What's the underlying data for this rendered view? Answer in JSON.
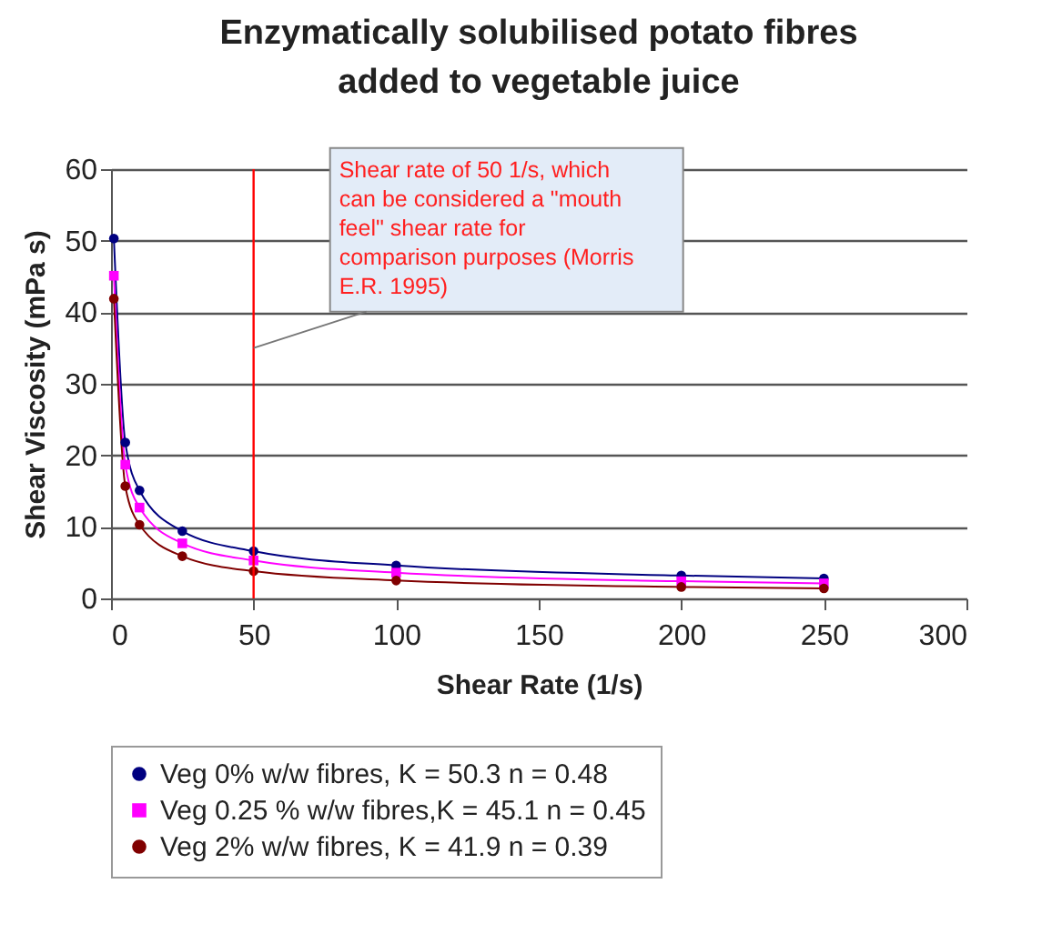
{
  "chart_data": {
    "type": "line",
    "title": "Enzymatically solubilised potato fibres added to vegetable juice",
    "xlabel": "Shear Rate (1/s)",
    "ylabel": "Shear Viscosity (mPa s)",
    "x": [
      1,
      5,
      10,
      25,
      50,
      100,
      200,
      250
    ],
    "series": [
      {
        "name": "Veg 0% w/w fibres, K = 50.3 n = 0.48",
        "color": "#000080",
        "marker": "circle",
        "values": [
          50.3,
          21.8,
          15.1,
          9.4,
          6.6,
          4.6,
          3.2,
          2.8
        ]
      },
      {
        "name": "Veg 0.25 % w/w fibres,K = 45.1 n = 0.45",
        "color": "#ff00ff",
        "marker": "square",
        "values": [
          45.1,
          18.7,
          12.7,
          7.7,
          5.3,
          3.6,
          2.4,
          2.1
        ]
      },
      {
        "name": "Veg 2% w/w fibres, K = 41.9 n = 0.39",
        "color": "#800000",
        "marker": "circle",
        "values": [
          41.9,
          15.7,
          10.3,
          5.9,
          3.8,
          2.5,
          1.6,
          1.4
        ]
      }
    ],
    "xlim": [
      0,
      300
    ],
    "xticks": [
      0,
      50,
      100,
      150,
      200,
      250,
      300
    ],
    "ylim": [
      0,
      60
    ],
    "yticks": [
      0,
      10,
      20,
      30,
      40,
      50,
      60
    ],
    "grid": "y",
    "legend": "bottom",
    "marker": "circle",
    "line_style": "solid",
    "ref_lines": [
      {
        "axis": "x",
        "value": 50,
        "color": "#ff0000"
      }
    ],
    "annotations": [
      {
        "text": "Shear rate of 50 1/s, which can be considered a \"mouth feel\" shear rate for comparison purposes (Morris E.R. 1995)",
        "x": 50,
        "y": 35
      }
    ]
  }
}
